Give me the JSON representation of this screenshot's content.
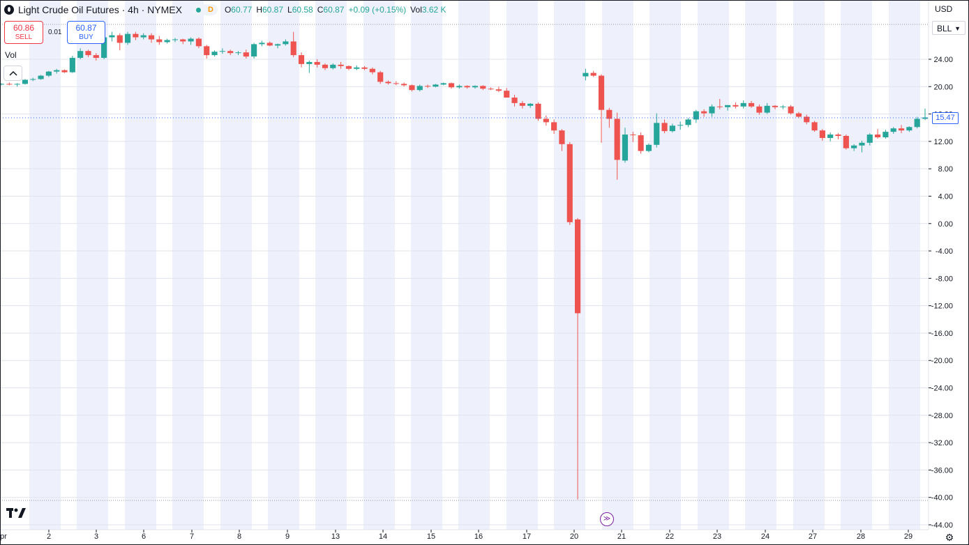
{
  "header": {
    "title": "Light Crude Oil Futures · 4h · NYMEX",
    "status_badge": "D",
    "ohlc": [
      {
        "key": "O",
        "value": "60.77"
      },
      {
        "key": "H",
        "value": "60.87"
      },
      {
        "key": "L",
        "value": "60.58"
      },
      {
        "key": "C",
        "value": "60.87"
      },
      {
        "key": "",
        "value": "+0.09 (+0.15%)"
      },
      {
        "key": "Vol",
        "value": "3.62 K"
      }
    ]
  },
  "trade": {
    "sell_price": "60.86",
    "sell_label": "SELL",
    "spread": "0.01",
    "buy_price": "60.87",
    "buy_label": "BUY"
  },
  "volume_label": "Vol",
  "collapse_icon": "chevron-up-icon",
  "logo_text": "TV",
  "price_axis": {
    "currency": "USD",
    "unit": "BLL",
    "last_price": "15.47"
  },
  "colors": {
    "up": "#26a69a",
    "down": "#ef5350",
    "session_band": "#eef1fc",
    "accent": "#2962ff",
    "goto_icon": "#7b1fa2"
  },
  "chart_data": {
    "type": "candlestick",
    "ylim": [
      -44,
      28
    ],
    "y_ticks": [
      24,
      20,
      16,
      12,
      8,
      4,
      0,
      -4,
      -8,
      -12,
      -16,
      -20,
      -24,
      -28,
      -32,
      -36,
      -40,
      -44
    ],
    "y_tick_labels": [
      "24.00",
      "20.00",
      "16.00",
      "12.00",
      "8.00",
      "4.00",
      "0.00",
      "-4.00",
      "-8.00",
      "-12.00",
      "-16.00",
      "-20.00",
      "-24.00",
      "-28.00",
      "-32.00",
      "-36.00",
      "-40.00",
      "-44.00"
    ],
    "x_tick_labels": [
      "pr",
      "2",
      "3",
      "6",
      "7",
      "8",
      "9",
      "13",
      "14",
      "15",
      "16",
      "17",
      "20",
      "21",
      "22",
      "23",
      "24",
      "27",
      "28",
      "29"
    ],
    "candles": [
      [
        20.3,
        20.5,
        20.2,
        20.4
      ],
      [
        20.4,
        20.6,
        20.2,
        20.3
      ],
      [
        20.3,
        20.5,
        20.0,
        20.4
      ],
      [
        20.4,
        21.1,
        20.3,
        21.0
      ],
      [
        21.0,
        21.3,
        20.8,
        21.1
      ],
      [
        21.1,
        21.7,
        21.0,
        21.6
      ],
      [
        21.6,
        22.3,
        21.4,
        22.2
      ],
      [
        22.2,
        22.6,
        21.9,
        22.4
      ],
      [
        22.4,
        22.5,
        22.0,
        22.1
      ],
      [
        22.1,
        24.5,
        22.0,
        24.2
      ],
      [
        24.2,
        25.6,
        24.0,
        25.2
      ],
      [
        25.2,
        25.4,
        24.3,
        24.6
      ],
      [
        24.6,
        24.9,
        23.8,
        24.2
      ],
      [
        24.2,
        27.5,
        24.0,
        27.2
      ],
      [
        27.2,
        28.0,
        26.6,
        27.5
      ],
      [
        27.5,
        27.8,
        25.3,
        26.4
      ],
      [
        26.4,
        28.0,
        26.1,
        27.7
      ],
      [
        27.7,
        28.0,
        26.8,
        27.2
      ],
      [
        27.2,
        27.8,
        26.9,
        27.5
      ],
      [
        27.5,
        27.8,
        26.4,
        26.9
      ],
      [
        26.9,
        27.4,
        26.1,
        26.5
      ],
      [
        26.5,
        27.0,
        26.3,
        26.8
      ],
      [
        26.8,
        27.1,
        26.5,
        26.9
      ],
      [
        26.9,
        27.0,
        26.2,
        26.6
      ],
      [
        26.6,
        27.2,
        26.1,
        27.0
      ],
      [
        27.0,
        27.2,
        25.6,
        25.9
      ],
      [
        25.9,
        26.1,
        24.1,
        24.6
      ],
      [
        24.6,
        25.3,
        24.4,
        25.1
      ],
      [
        25.1,
        25.6,
        24.8,
        25.2
      ],
      [
        25.2,
        25.4,
        24.6,
        24.9
      ],
      [
        24.9,
        25.2,
        24.6,
        25.0
      ],
      [
        25.0,
        25.4,
        24.1,
        24.4
      ],
      [
        24.4,
        26.4,
        24.1,
        26.2
      ],
      [
        26.2,
        26.7,
        25.9,
        26.4
      ],
      [
        26.4,
        26.6,
        25.9,
        26.0
      ],
      [
        26.0,
        26.3,
        25.6,
        26.2
      ],
      [
        26.2,
        26.9,
        26.0,
        26.6
      ],
      [
        26.6,
        28.0,
        24.3,
        24.6
      ],
      [
        24.6,
        25.0,
        22.8,
        23.3
      ],
      [
        23.3,
        23.8,
        22.0,
        23.6
      ],
      [
        23.6,
        24.0,
        22.8,
        23.2
      ],
      [
        23.2,
        23.4,
        22.4,
        22.7
      ],
      [
        22.7,
        23.4,
        22.5,
        23.2
      ],
      [
        23.2,
        23.6,
        22.6,
        23.0
      ],
      [
        23.0,
        23.1,
        22.4,
        22.6
      ],
      [
        22.6,
        23.1,
        22.4,
        22.8
      ],
      [
        22.8,
        23.0,
        22.4,
        22.6
      ],
      [
        22.6,
        22.8,
        21.8,
        22.1
      ],
      [
        22.1,
        22.3,
        20.4,
        20.7
      ],
      [
        20.7,
        20.9,
        20.3,
        20.5
      ],
      [
        20.5,
        20.8,
        20.2,
        20.4
      ],
      [
        20.4,
        20.6,
        20.0,
        20.2
      ],
      [
        20.2,
        20.3,
        19.3,
        19.5
      ],
      [
        19.5,
        20.3,
        19.3,
        20.1
      ],
      [
        20.1,
        20.3,
        19.8,
        20.0
      ],
      [
        20.0,
        20.4,
        19.9,
        20.3
      ],
      [
        20.3,
        20.6,
        20.2,
        20.5
      ],
      [
        20.5,
        20.6,
        19.7,
        19.9
      ],
      [
        19.9,
        20.3,
        19.7,
        20.1
      ],
      [
        20.1,
        20.2,
        19.7,
        19.9
      ],
      [
        19.9,
        20.2,
        19.7,
        20.1
      ],
      [
        20.1,
        20.2,
        19.5,
        19.7
      ],
      [
        19.7,
        19.9,
        19.5,
        19.6
      ],
      [
        19.6,
        20.0,
        19.2,
        19.4
      ],
      [
        19.4,
        19.8,
        18.6,
        18.4
      ],
      [
        18.4,
        18.8,
        17.1,
        17.6
      ],
      [
        17.6,
        17.9,
        16.8,
        17.2
      ],
      [
        17.2,
        17.6,
        16.9,
        17.5
      ],
      [
        17.5,
        17.7,
        15.0,
        15.3
      ],
      [
        15.3,
        15.8,
        14.3,
        14.8
      ],
      [
        14.8,
        15.2,
        13.1,
        13.6
      ],
      [
        13.6,
        13.8,
        10.6,
        11.6
      ],
      [
        11.6,
        11.9,
        -0.2,
        0.2
      ],
      [
        0.6,
        0.8,
        -40.3,
        -13.1
      ],
      [
        21.5,
        22.6,
        20.9,
        22.0
      ],
      [
        22.0,
        22.3,
        21.4,
        21.6
      ],
      [
        21.6,
        21.8,
        11.8,
        16.6
      ],
      [
        16.6,
        16.9,
        14.0,
        15.3
      ],
      [
        15.3,
        16.2,
        6.4,
        9.3
      ],
      [
        9.2,
        14.0,
        8.9,
        13.0
      ],
      [
        13.0,
        13.4,
        11.9,
        12.9
      ],
      [
        12.9,
        13.3,
        10.2,
        10.6
      ],
      [
        10.6,
        11.7,
        10.4,
        11.5
      ],
      [
        11.5,
        16.1,
        11.1,
        14.7
      ],
      [
        14.7,
        15.2,
        13.2,
        13.5
      ],
      [
        13.5,
        14.6,
        13.3,
        14.3
      ],
      [
        14.3,
        14.9,
        13.7,
        14.4
      ],
      [
        14.4,
        15.4,
        14.1,
        15.2
      ],
      [
        15.2,
        16.6,
        14.7,
        16.4
      ],
      [
        16.4,
        16.7,
        15.6,
        16.1
      ],
      [
        16.1,
        17.4,
        15.6,
        17.1
      ],
      [
        17.1,
        18.2,
        16.7,
        17.0
      ],
      [
        17.0,
        17.3,
        16.5,
        17.3
      ],
      [
        17.3,
        17.7,
        16.8,
        17.1
      ],
      [
        17.1,
        18.0,
        16.8,
        17.6
      ],
      [
        17.6,
        17.9,
        16.9,
        17.1
      ],
      [
        17.1,
        17.4,
        15.9,
        16.2
      ],
      [
        16.2,
        17.6,
        16.0,
        17.2
      ],
      [
        17.2,
        17.3,
        16.7,
        17.0
      ],
      [
        17.0,
        17.3,
        16.7,
        17.1
      ],
      [
        17.1,
        17.3,
        15.9,
        16.1
      ],
      [
        16.1,
        16.3,
        15.4,
        15.6
      ],
      [
        15.6,
        15.9,
        14.5,
        14.8
      ],
      [
        14.8,
        15.0,
        13.4,
        13.6
      ],
      [
        13.6,
        13.8,
        12.1,
        12.5
      ],
      [
        12.5,
        13.3,
        12.0,
        13.0
      ],
      [
        13.0,
        13.2,
        12.3,
        12.8
      ],
      [
        12.8,
        13.0,
        10.8,
        11.0
      ],
      [
        11.0,
        11.6,
        10.6,
        11.4
      ],
      [
        11.4,
        12.1,
        10.4,
        11.8
      ],
      [
        11.8,
        13.2,
        11.4,
        13.0
      ],
      [
        13.0,
        13.8,
        12.4,
        12.6
      ],
      [
        12.6,
        13.7,
        12.4,
        13.4
      ],
      [
        13.4,
        14.1,
        13.1,
        13.9
      ],
      [
        13.9,
        14.4,
        13.2,
        13.6
      ],
      [
        13.6,
        14.2,
        13.4,
        14.1
      ],
      [
        14.1,
        15.6,
        13.9,
        15.3
      ],
      [
        15.3,
        16.8,
        15.1,
        15.5
      ]
    ]
  }
}
